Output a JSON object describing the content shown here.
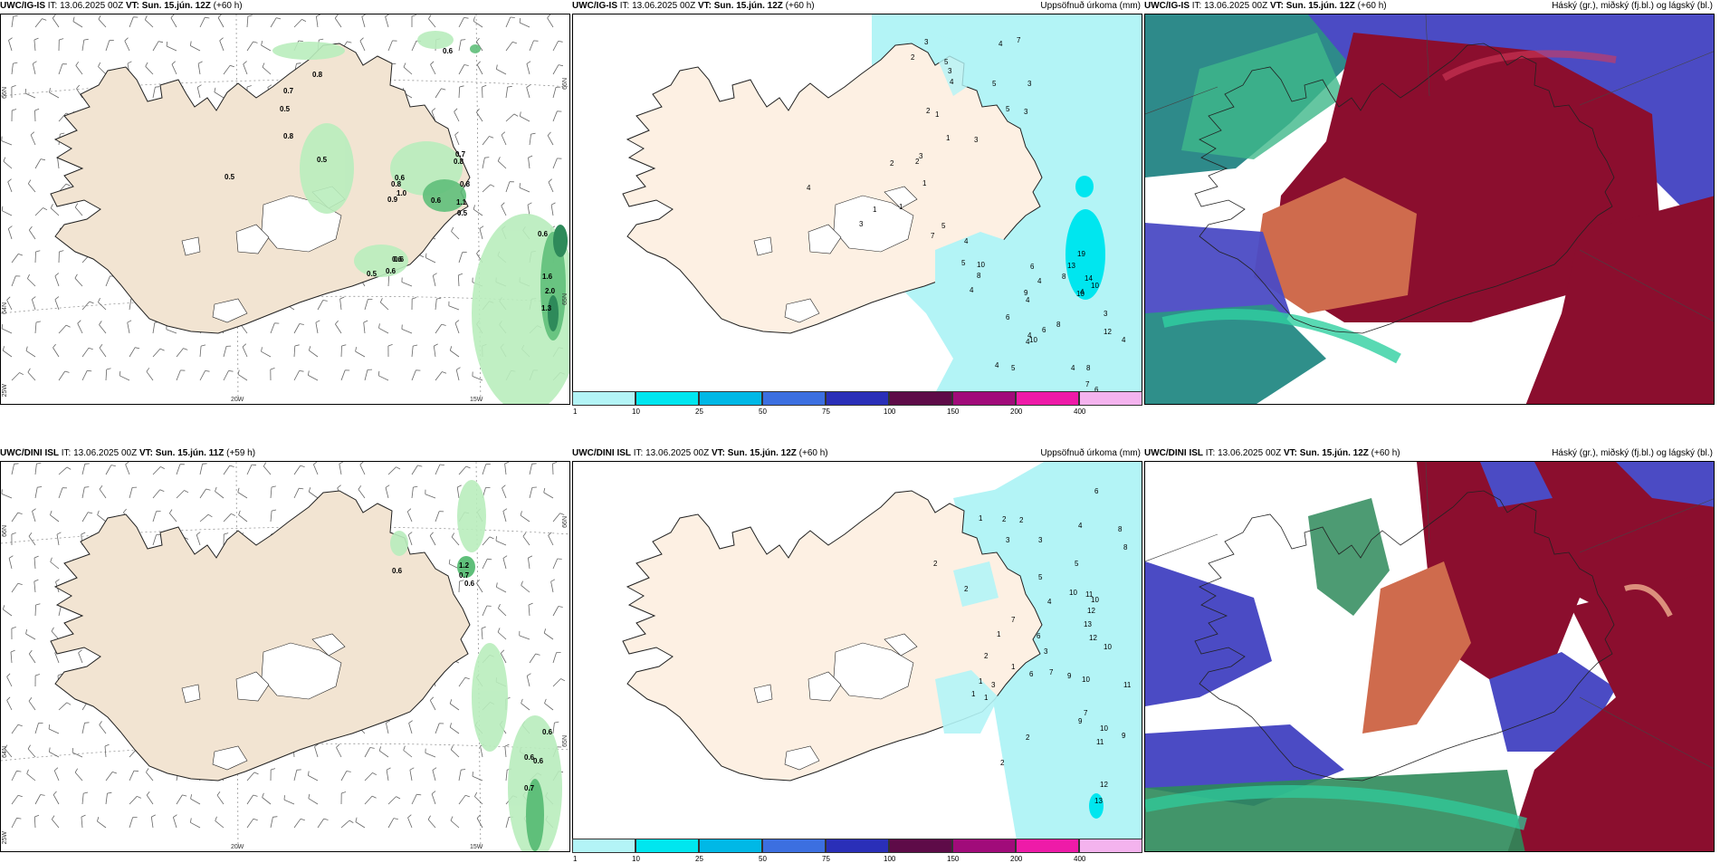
{
  "colors": {
    "land": "#f2e4d2",
    "precip_light": "#b3f4f6",
    "precip_med": "#00e6ef",
    "cloud_high": "#8b0e2e",
    "cloud_mid": "#cf6b4d",
    "cloud_low": "#4b4bc4",
    "green_light": "#b9edbd",
    "green_dark": "#2e8a5a"
  },
  "panels": {
    "top_left": {
      "model": "UWC/IG-IS",
      "it_label": "IT:",
      "it_value": "13.06.2025 00Z",
      "vt_label": "VT:",
      "vt_value": "Sun. 15.jún. 12Z",
      "lead": "(+60 h)",
      "values": [
        "0.6",
        "0.8",
        "0.7",
        "0.5",
        "0.8",
        "0.5",
        "0.5",
        "0.8",
        "0.7",
        "0.8",
        "0.6",
        "0.8",
        "1.0",
        "0.9",
        "1.1",
        "0.6",
        "0.5",
        "0.6",
        "0.6",
        "0.5",
        "0.6",
        "0.6",
        "1.6",
        "2.0",
        "1.3"
      ],
      "coords": {
        "lat_66": "66N",
        "lat_64": "64N",
        "lat_65e": "65N",
        "lon_20w": "20W",
        "lon_15w": "15W",
        "lon_25w": "25W"
      }
    },
    "top_mid": {
      "model": "UWC/IG-IS",
      "it_label": "IT:",
      "it_value": "13.06.2025 00Z",
      "vt_label": "VT:",
      "vt_value": "Sun. 15.jún. 12Z",
      "lead": "(+60 h)",
      "right_title": "Uppsöfnuð úrkoma (mm)",
      "values": [
        "3",
        "4",
        "7",
        "2",
        "5",
        "3",
        "4",
        "5",
        "3",
        "5",
        "3",
        "2",
        "1",
        "1",
        "3",
        "3",
        "2",
        "2",
        "1",
        "1",
        "1",
        "4",
        "3",
        "5",
        "7",
        "4",
        "5",
        "10",
        "8",
        "6",
        "4",
        "8",
        "4",
        "4",
        "9",
        "4",
        "6",
        "10",
        "8",
        "13",
        "19",
        "14",
        "10",
        "10",
        "12",
        "4",
        "4",
        "4",
        "6",
        "3",
        "5",
        "4",
        "4",
        "8",
        "7",
        "6",
        "5",
        "4",
        "2"
      ],
      "colorbar": [
        "1",
        "10",
        "25",
        "50",
        "75",
        "100",
        "150",
        "200",
        "400"
      ]
    },
    "top_right": {
      "model": "UWC/IG-IS",
      "it_label": "IT:",
      "it_value": "13.06.2025 00Z",
      "vt_label": "VT:",
      "vt_value": "Sun. 15.jún. 12Z",
      "lead": "(+60 h)",
      "right_title": "Háský (gr.), miðský (fj.bl.) og lágský (bl.)"
    },
    "bottom_left": {
      "model": "UWC/DINI ISL",
      "it_label": "IT:",
      "it_value": "13.06.2025 00Z",
      "vt_label": "VT:",
      "vt_value": "Sun. 15.jún. 11Z",
      "lead": "(+59 h)",
      "values": [
        "0.6",
        "1.2",
        "0.7",
        "0.6",
        "0.6",
        "0.6",
        "0.6",
        "0.7"
      ],
      "coords": {
        "lat_66": "66N",
        "lat_64": "64N",
        "lat_65e": "65N",
        "lon_20w": "20W",
        "lon_15w": "15W",
        "lon_25w": "25W"
      }
    },
    "bottom_mid": {
      "model": "UWC/DINI ISL",
      "it_label": "IT:",
      "it_value": "13.06.2025 00Z",
      "vt_label": "VT:",
      "vt_value": "Sun. 15.jún. 12Z",
      "lead": "(+60 h)",
      "right_title": "Uppsöfnuð úrkoma (mm)",
      "values": [
        "6",
        "1",
        "2",
        "2",
        "4",
        "8",
        "3",
        "3",
        "8",
        "5",
        "2",
        "5",
        "2",
        "10",
        "11",
        "4",
        "10",
        "12",
        "7",
        "1",
        "6",
        "3",
        "13",
        "12",
        "2",
        "1",
        "10",
        "1",
        "3",
        "1",
        "6",
        "7",
        "9",
        "10",
        "11",
        "1",
        "7",
        "9",
        "10",
        "2",
        "11",
        "9",
        "2",
        "12",
        "13"
      ],
      "colorbar": [
        "1",
        "10",
        "25",
        "50",
        "75",
        "100",
        "150",
        "200",
        "400"
      ]
    },
    "bottom_right": {
      "model": "UWC/DINI ISL",
      "it_label": "IT:",
      "it_value": "13.06.2025 00Z",
      "vt_label": "VT:",
      "vt_value": "Sun. 15.jún. 12Z",
      "lead": "(+60 h)",
      "right_title": "Háský (gr.), miðský (fj.bl.) og lágský (bl.)"
    }
  }
}
